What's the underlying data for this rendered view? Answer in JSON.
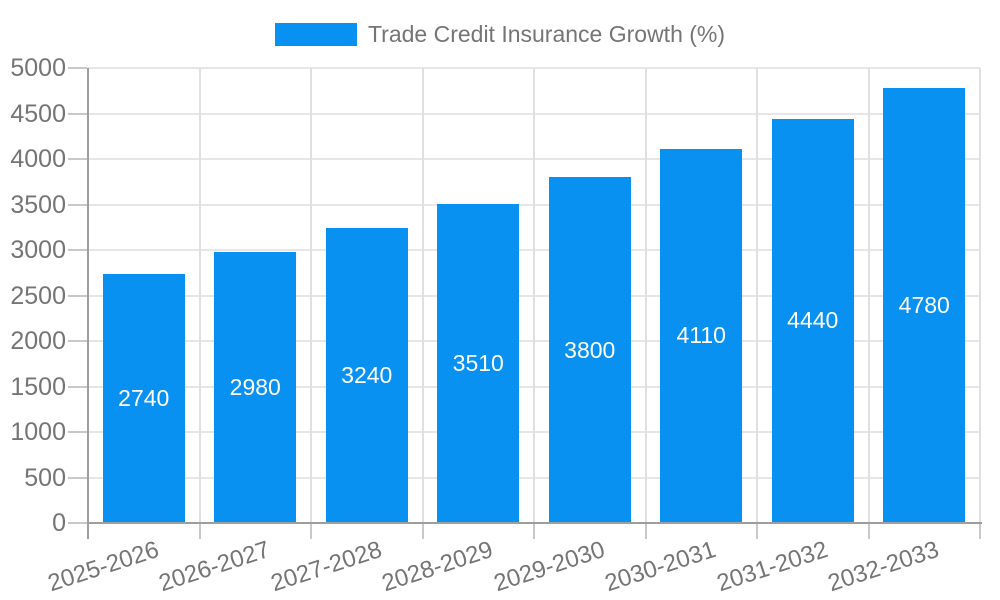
{
  "legend": {
    "label": "Trade Credit Insurance Growth (%)"
  },
  "colors": {
    "bar": "#0991f2",
    "bar_label": "#ffffff",
    "axis_line": "#9e9e9e",
    "hgrid": "#e6e6e6",
    "vgrid": "#e0e0e0",
    "tick": "#c9c9c9",
    "text": "#757575"
  },
  "chart_data": {
    "type": "bar",
    "title": "",
    "xlabel": "",
    "ylabel": "",
    "categories": [
      "2025-2026",
      "2026-2027",
      "2027-2028",
      "2028-2029",
      "2029-2030",
      "2030-2031",
      "2031-2032",
      "2032-2033"
    ],
    "values": [
      2740,
      2980,
      3240,
      3510,
      3800,
      4110,
      4440,
      4780
    ],
    "series_name": "Trade Credit Insurance Growth (%)",
    "bar_labels": [
      "2740",
      "2980",
      "3240",
      "3510",
      "3800",
      "4110",
      "4440",
      "4780"
    ],
    "ylim": [
      0,
      5000
    ],
    "ytick_step": 500,
    "yticks": [
      "0",
      "500",
      "1000",
      "1500",
      "2000",
      "2500",
      "3000",
      "3500",
      "4000",
      "4500",
      "5000"
    ],
    "grid": true,
    "legend_position": "top-center",
    "bar_labels_visible": true
  }
}
